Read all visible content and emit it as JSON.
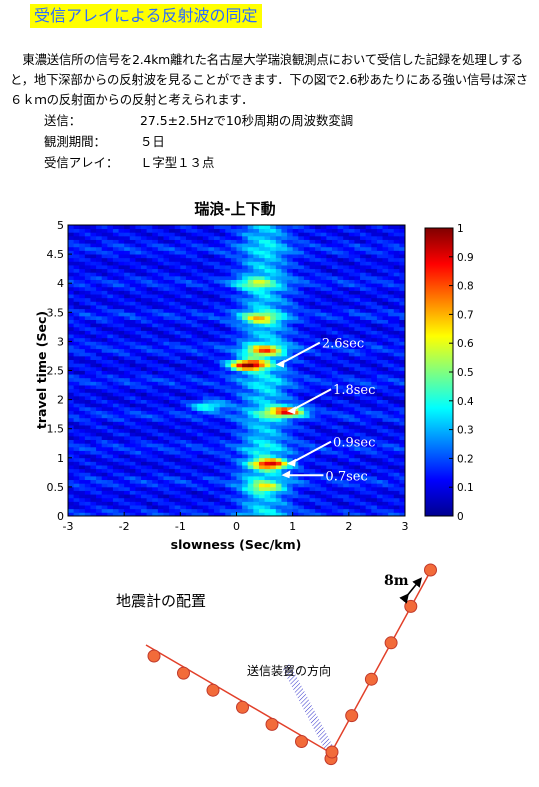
{
  "page": {
    "title": "受信アレイによる反射波の同定",
    "intro": "東濃送信所の信号を2.4km離れた名古屋大学瑞浪観測点において受信した記録を処理しすると，地下深部からの反射波を見ることができます．下の図で2.6秒あたりにある強い信号は深さ６ｋｍの反射面からの反射と考えられます．",
    "specs": [
      {
        "label": "送信：",
        "value": "27.5±2.5Hzで10秒周期の周波数変調"
      },
      {
        "label": "観測期間：",
        "value": "５日"
      },
      {
        "label": "受信アレイ：",
        "value": "Ｌ字型１３点"
      }
    ]
  },
  "chart_data": {
    "type": "heatmap",
    "title": "瑞浪-上下動",
    "xlabel": "slowness (Sec/km)",
    "ylabel": "travel time (Sec)",
    "xlim": [
      -3,
      3
    ],
    "ylim": [
      0,
      5
    ],
    "xticks": [
      -3,
      -2,
      -1,
      0,
      1,
      2,
      3
    ],
    "yticks": [
      0,
      0.5,
      1,
      1.5,
      2,
      2.5,
      3,
      3.5,
      4,
      4.5,
      5
    ],
    "colorbar": {
      "min": 0,
      "max": 1,
      "ticks": [
        0,
        0.1,
        0.2,
        0.3,
        0.4,
        0.5,
        0.6,
        0.7,
        0.8,
        0.9,
        1
      ]
    },
    "annotations": [
      {
        "label": "2.6sec",
        "x": 0.7,
        "y": 2.6
      },
      {
        "label": "1.8sec",
        "x": 0.9,
        "y": 1.8
      },
      {
        "label": "0.9sec",
        "x": 0.9,
        "y": 0.9
      },
      {
        "label": "0.7sec",
        "x": 0.8,
        "y": 0.7
      }
    ],
    "peaks": [
      {
        "x": 0.2,
        "y": 2.6,
        "value": 1.0
      },
      {
        "x": 0.9,
        "y": 1.8,
        "value": 0.85
      },
      {
        "x": 0.6,
        "y": 0.9,
        "value": 0.85
      },
      {
        "x": 0.5,
        "y": 2.85,
        "value": 0.65
      },
      {
        "x": 0.4,
        "y": 3.4,
        "value": 0.55
      },
      {
        "x": -0.5,
        "y": 1.9,
        "value": 0.5
      },
      {
        "x": 0.5,
        "y": 0.5,
        "value": 0.5
      },
      {
        "x": 0.3,
        "y": 4.0,
        "value": 0.45
      }
    ]
  },
  "seismometer_layout": {
    "title": "地震計の配置",
    "spacing_label": "8m",
    "source_direction_label": "送信装置の方向",
    "station_count": 13
  },
  "colors": {
    "title_text": "#2a6cff",
    "title_bg": "#ffff00",
    "station_fill": "#f26b3a",
    "array_line": "#e2402a",
    "direction_hatch": "#3333cc"
  }
}
